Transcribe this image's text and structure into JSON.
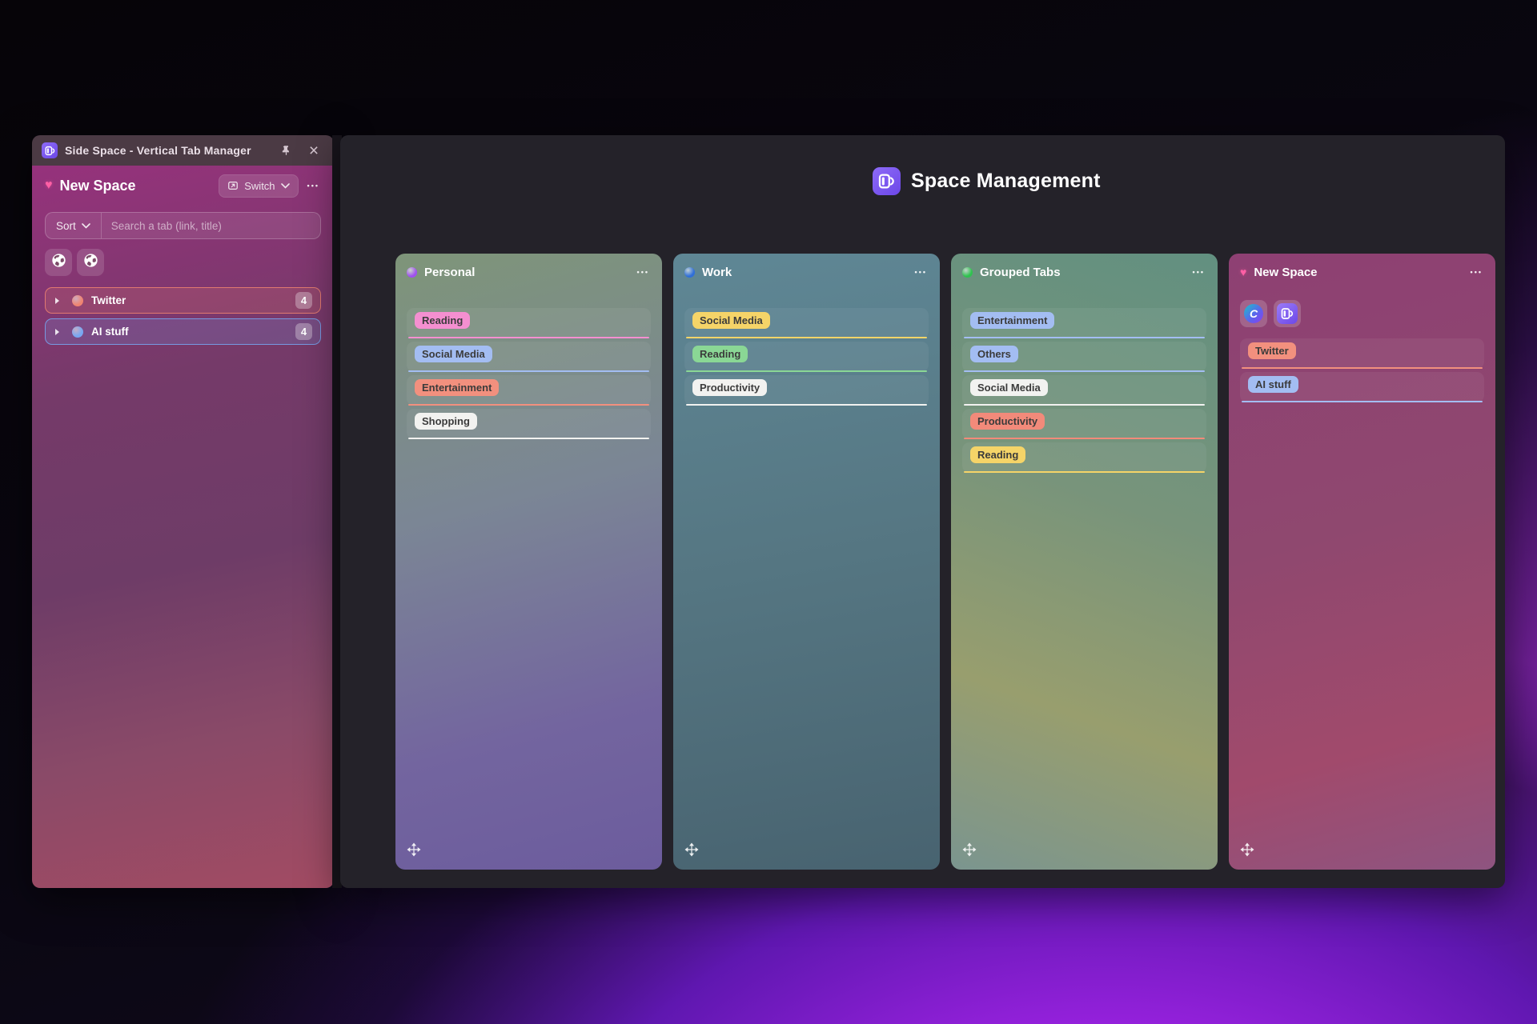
{
  "window": {
    "title": "Side Space - Vertical Tab Manager"
  },
  "icons": {
    "more": "•••",
    "close": "×",
    "heart": "♥"
  },
  "sidebar": {
    "space_icon": "pink-heart",
    "space_name": "New Space",
    "switch_label": "Switch",
    "sort_label": "Sort",
    "search_placeholder": "Search a tab (link, title)",
    "pinned_tabs": [
      {
        "icon": "globe"
      },
      {
        "icon": "globe"
      }
    ],
    "groups": [
      {
        "label": "Twitter",
        "count": "4",
        "color": "#ef8471"
      },
      {
        "label": "AI stuff",
        "count": "4",
        "color": "#77a7f2"
      }
    ]
  },
  "main": {
    "title": "Space Management",
    "columns": [
      {
        "name": "Personal",
        "dot_color": "#a050f0",
        "tags": [
          {
            "label": "Reading",
            "color": "#f48fd0"
          },
          {
            "label": "Social Media",
            "color": "#a3bdf2"
          },
          {
            "label": "Entertainment",
            "color": "#f2907e"
          },
          {
            "label": "Shopping",
            "color": "#f2f2f0"
          }
        ]
      },
      {
        "name": "Work",
        "dot_color": "#2f6fd8",
        "tags": [
          {
            "label": "Social Media",
            "color": "#f5d468"
          },
          {
            "label": "Reading",
            "color": "#8ad795"
          },
          {
            "label": "Productivity",
            "color": "#f2f2f0"
          }
        ]
      },
      {
        "name": "Grouped Tabs",
        "dot_color": "#2fc24f",
        "tags": [
          {
            "label": "Entertainment",
            "color": "#a3bdf2"
          },
          {
            "label": "Others",
            "color": "#a3bdf2"
          },
          {
            "label": "Social Media",
            "color": "#f2f2f0"
          },
          {
            "label": "Productivity",
            "color": "#f28a7a"
          },
          {
            "label": "Reading",
            "color": "#f5d468"
          }
        ]
      },
      {
        "name": "New Space",
        "heart_icon": "pink-heart",
        "favicons": [
          {
            "type": "canva",
            "letter": "C"
          },
          {
            "type": "side-space"
          }
        ],
        "tags": [
          {
            "label": "Twitter",
            "color": "#f2907e"
          },
          {
            "label": "AI stuff",
            "color": "#a3bdf2"
          }
        ]
      }
    ]
  }
}
